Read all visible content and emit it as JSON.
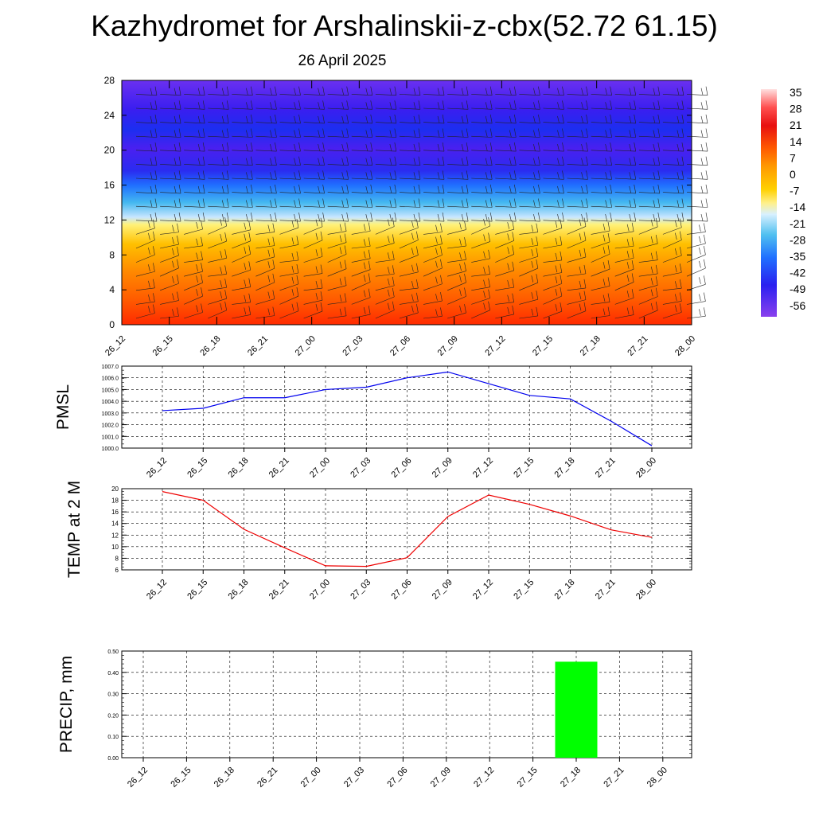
{
  "title": "Kazhydromet for Arshalinskii-z-cbx(52.72 61.15)",
  "date": "26 April 2025",
  "colors": {
    "pmsl_line": "#0000ee",
    "temp_line": "#ee0000",
    "precip_bar": "#00ff00"
  },
  "chart_data": [
    {
      "type": "heatmap",
      "title": "",
      "categories": [
        "26_12",
        "26_15",
        "26_18",
        "26_21",
        "27_00",
        "27_03",
        "27_06",
        "27_09",
        "27_12",
        "27_15",
        "27_18",
        "27_21",
        "28_00"
      ],
      "yticks": [
        0,
        4,
        8,
        12,
        16,
        20,
        24,
        28
      ],
      "ylim": [
        0,
        28
      ],
      "colorbar": {
        "labels": [
          "35",
          "28",
          "21",
          "14",
          "7",
          "0",
          "-7",
          "-14",
          "-21",
          "-28",
          "-35",
          "-42",
          "-49",
          "-56"
        ]
      },
      "overlay": "wind barbs"
    },
    {
      "type": "line",
      "ylabel": "PMSL",
      "categories": [
        "26_12",
        "26_15",
        "26_18",
        "26_21",
        "27_00",
        "27_03",
        "27_06",
        "27_09",
        "27_12",
        "27_15",
        "27_18",
        "27_21",
        "28_00"
      ],
      "yticks": [
        "1007.0",
        "1006.0",
        "1005.0",
        "1004.0",
        "1003.0",
        "1002.0",
        "1001.0",
        "1000.0"
      ],
      "ylim": [
        1000,
        1007
      ],
      "series": [
        {
          "values": [
            1003.2,
            1003.4,
            1004.3,
            1004.3,
            1005.0,
            1005.2,
            1006.0,
            1006.5,
            1005.5,
            1004.5,
            1004.2,
            1002.3,
            1000.2
          ]
        }
      ],
      "grid": true
    },
    {
      "type": "line",
      "ylabel": "TEMP at 2 M",
      "categories": [
        "26_12",
        "26_15",
        "26_18",
        "26_21",
        "27_00",
        "27_03",
        "27_06",
        "27_09",
        "27_12",
        "27_15",
        "27_18",
        "27_21",
        "28_00"
      ],
      "yticks": [
        "20",
        "18",
        "16",
        "14",
        "12",
        "10",
        "8",
        "6"
      ],
      "ylim": [
        6,
        20
      ],
      "series": [
        {
          "values": [
            19.5,
            18.0,
            13.0,
            9.8,
            6.7,
            6.6,
            8.1,
            15.2,
            18.9,
            17.3,
            15.3,
            12.9,
            11.6
          ]
        }
      ],
      "grid": true
    },
    {
      "type": "bar",
      "ylabel": "PRECIP, mm",
      "categories": [
        "26_12",
        "26_15",
        "26_18",
        "26_21",
        "27_00",
        "27_03",
        "27_06",
        "27_09",
        "27_12",
        "27_15",
        "27_18",
        "27_21",
        "28_00"
      ],
      "yticks": [
        "0.50",
        "0.40",
        "0.30",
        "0.20",
        "0.10",
        "0.00"
      ],
      "ylim": [
        0,
        0.5
      ],
      "values": [
        0,
        0,
        0,
        0,
        0,
        0,
        0,
        0,
        0,
        0,
        0.45,
        0,
        0
      ],
      "grid": true
    }
  ]
}
